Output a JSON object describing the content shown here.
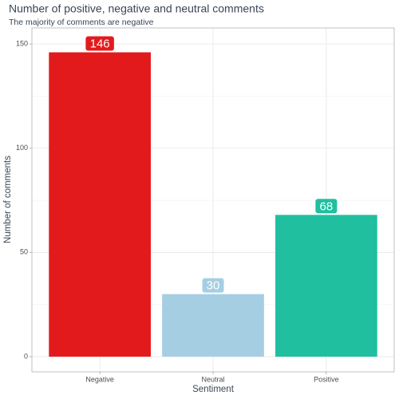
{
  "chart_data": {
    "type": "bar",
    "title": "Number of positive, negative and neutral comments",
    "subtitle": "The majority of comments are negative",
    "x_label": "Sentiment",
    "y_label": "Number of comments",
    "categories": [
      "Negative",
      "Neutral",
      "Positive"
    ],
    "values": [
      146,
      30,
      68
    ],
    "colors": [
      "#e31a1c",
      "#a6cee3",
      "#1fbf9f"
    ],
    "ylim": [
      -7.3,
      157.7
    ],
    "yticks": [
      0,
      50,
      100,
      150
    ],
    "minor_yticks": [
      25,
      75,
      125
    ],
    "grid": true
  }
}
